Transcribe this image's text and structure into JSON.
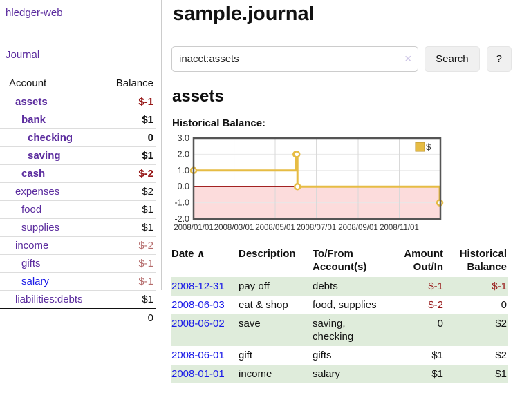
{
  "brand": "hledger-web",
  "header": {
    "title": "sample.journal"
  },
  "sidebar": {
    "journal_label": "Journal",
    "accounts": {
      "account_header": "Account",
      "balance_header": "Balance",
      "rows": [
        {
          "label": "assets",
          "balance": "$-1",
          "level": 1,
          "bold": true,
          "link_color": "purple"
        },
        {
          "label": "bank",
          "balance": "$1",
          "level": 2,
          "bold": true,
          "link_color": "purple"
        },
        {
          "label": "checking",
          "balance": "0",
          "level": 3,
          "bold": true,
          "link_color": "purple"
        },
        {
          "label": "saving",
          "balance": "$1",
          "level": 3,
          "bold": true,
          "link_color": "purple"
        },
        {
          "label": "cash",
          "balance": "$-2",
          "level": 2,
          "bold": true,
          "link_color": "purple"
        },
        {
          "label": "expenses",
          "balance": "$2",
          "level": 1,
          "bold": false,
          "link_color": "purple"
        },
        {
          "label": "food",
          "balance": "$1",
          "level": 2,
          "bold": false,
          "link_color": "purple"
        },
        {
          "label": "supplies",
          "balance": "$1",
          "level": 2,
          "bold": false,
          "link_color": "purple"
        },
        {
          "label": "income",
          "balance": "$-2",
          "level": 1,
          "bold": false,
          "link_color": "purple"
        },
        {
          "label": "gifts",
          "balance": "$-1",
          "level": 2,
          "bold": false,
          "link_color": "purple"
        },
        {
          "label": "salary",
          "balance": "$-1",
          "level": 2,
          "bold": false,
          "link_color": "blue"
        },
        {
          "label": "liabilities:debts",
          "balance": "$1",
          "level": 1,
          "bold": false,
          "link_color": "purple"
        }
      ],
      "total": "0"
    }
  },
  "search": {
    "value": "inacct:assets",
    "clear_icon": "✕",
    "button_label": "Search",
    "help_label": "?"
  },
  "main": {
    "account_heading": "assets",
    "chart_label": "Historical Balance:"
  },
  "chart_data": {
    "type": "line",
    "step": true,
    "title": "Historical Balance",
    "series": [
      {
        "name": "$",
        "color": "#e6bc44",
        "points": [
          {
            "date": "2008-01-01",
            "value": 1
          },
          {
            "date": "2008-06-01",
            "value": 2
          },
          {
            "date": "2008-06-02",
            "value": 2
          },
          {
            "date": "2008-06-03",
            "value": 0
          },
          {
            "date": "2008-12-31",
            "value": -1
          }
        ]
      }
    ],
    "xlim": [
      "2008-01-01",
      "2009-01-01"
    ],
    "ylim": [
      -2,
      3
    ],
    "grid": true,
    "y_ticks": [
      {
        "v": 3,
        "label": "3.0"
      },
      {
        "v": 2,
        "label": "2.0"
      },
      {
        "v": 1,
        "label": "1.0"
      },
      {
        "v": 0,
        "label": "0.0"
      },
      {
        "v": -1,
        "label": "-1.0"
      },
      {
        "v": -2,
        "label": "-2.0"
      }
    ],
    "x_ticks": [
      {
        "date": "2008-01-01",
        "label": "2008/01/01"
      },
      {
        "date": "2008-03-01",
        "label": "2008/03/01"
      },
      {
        "date": "2008-05-01",
        "label": "2008/05/01"
      },
      {
        "date": "2008-07-01",
        "label": "2008/07/01"
      },
      {
        "date": "2008-09-01",
        "label": "2008/09/01"
      },
      {
        "date": "2008-11-01",
        "label": "2008/11/01"
      }
    ],
    "legend": {
      "label": "$",
      "position": "top-right"
    },
    "colors": {
      "negative_region": "#fcdcdc",
      "zero_line": "#a22222",
      "grid_h": "#e8e8e8",
      "grid_v": "#d9d9d9",
      "border": "#555555",
      "legend_swatch_border": "#b8922e",
      "marker_fill": "#ffffff"
    }
  },
  "register": {
    "headers": [
      {
        "label": "Date",
        "sort_icon": "∧",
        "align": "left"
      },
      {
        "label": "Description",
        "align": "left"
      },
      {
        "label": "To/From Account(s)",
        "align": "left"
      },
      {
        "label": "Amount Out/In",
        "align": "right"
      },
      {
        "label": "Historical Balance",
        "align": "right"
      }
    ],
    "rows": [
      {
        "date": "2008-12-31",
        "description": "pay off",
        "accounts": "debts",
        "amount": "$-1",
        "balance": "$-1",
        "shaded": true
      },
      {
        "date": "2008-06-03",
        "description": "eat & shop",
        "accounts": "food, supplies",
        "amount": "$-2",
        "balance": "0",
        "shaded": false
      },
      {
        "date": "2008-06-02",
        "description": "save",
        "accounts": "saving, checking",
        "amount": "0",
        "balance": "$2",
        "shaded": true
      },
      {
        "date": "2008-06-01",
        "description": "gift",
        "accounts": "gifts",
        "amount": "$1",
        "balance": "$2",
        "shaded": false
      },
      {
        "date": "2008-01-01",
        "description": "income",
        "accounts": "salary",
        "amount": "$1",
        "balance": "$1",
        "shaded": true
      }
    ]
  },
  "colors": {
    "link_purple": "#5b2c9e",
    "link_blue": "#1a1ae8",
    "negative": "#961616",
    "negative_muted": "#b56c6c",
    "row_shade_green": "#dfecdb",
    "divider": "#cccccc"
  }
}
